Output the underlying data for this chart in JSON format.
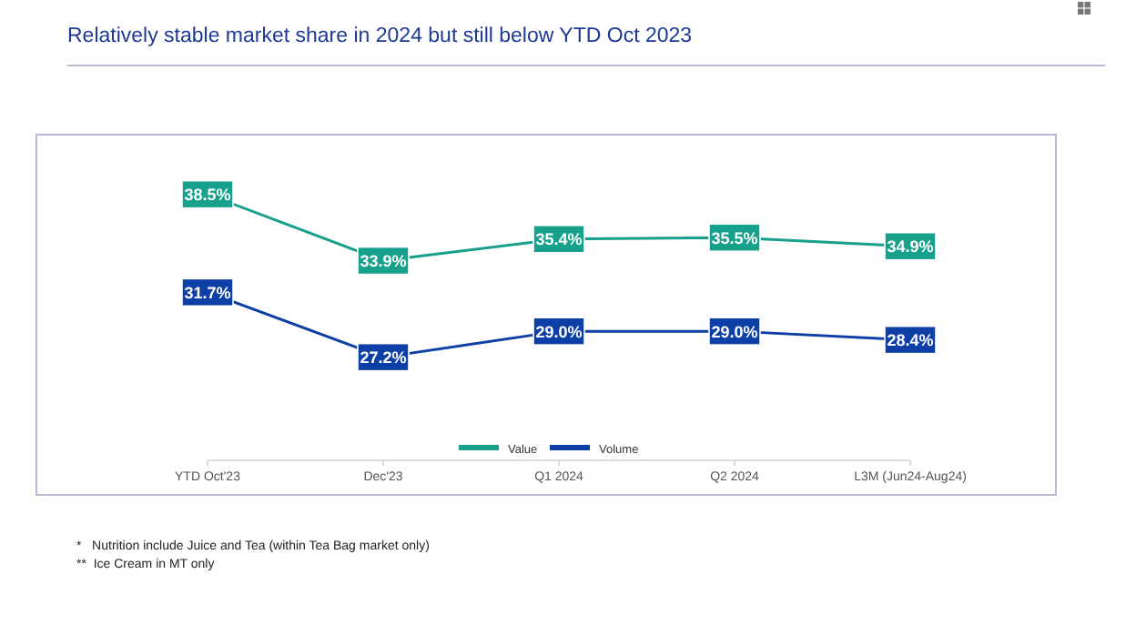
{
  "chart_data": {
    "type": "line",
    "title": "Relatively stable market share in 2024 but still below YTD Oct 2023",
    "categories": [
      "YTD Oct'23",
      "Dec'23",
      "Q1 2024",
      "Q2 2024",
      "L3M (Jun24-Aug24)"
    ],
    "series": [
      {
        "name": "Value",
        "color": "#17a08c",
        "values": [
          38.5,
          33.9,
          35.4,
          35.5,
          34.9
        ],
        "value_labels": [
          "38.5%",
          "33.9%",
          "35.4%",
          "35.5%",
          "34.9%"
        ]
      },
      {
        "name": "Volume",
        "color": "#0d3fa6",
        "values": [
          31.7,
          27.2,
          29.0,
          29.0,
          28.4
        ],
        "value_labels": [
          "31.7%",
          "27.2%",
          "29.0%",
          "29.0%",
          "28.4%"
        ]
      }
    ],
    "legend": "bottom",
    "marker": "square",
    "line_style": "solid",
    "annotations": [
      "*   Nutrition include Juice and Tea (within Tea Bag market only)",
      "**  Ice Cream in MT only"
    ]
  }
}
